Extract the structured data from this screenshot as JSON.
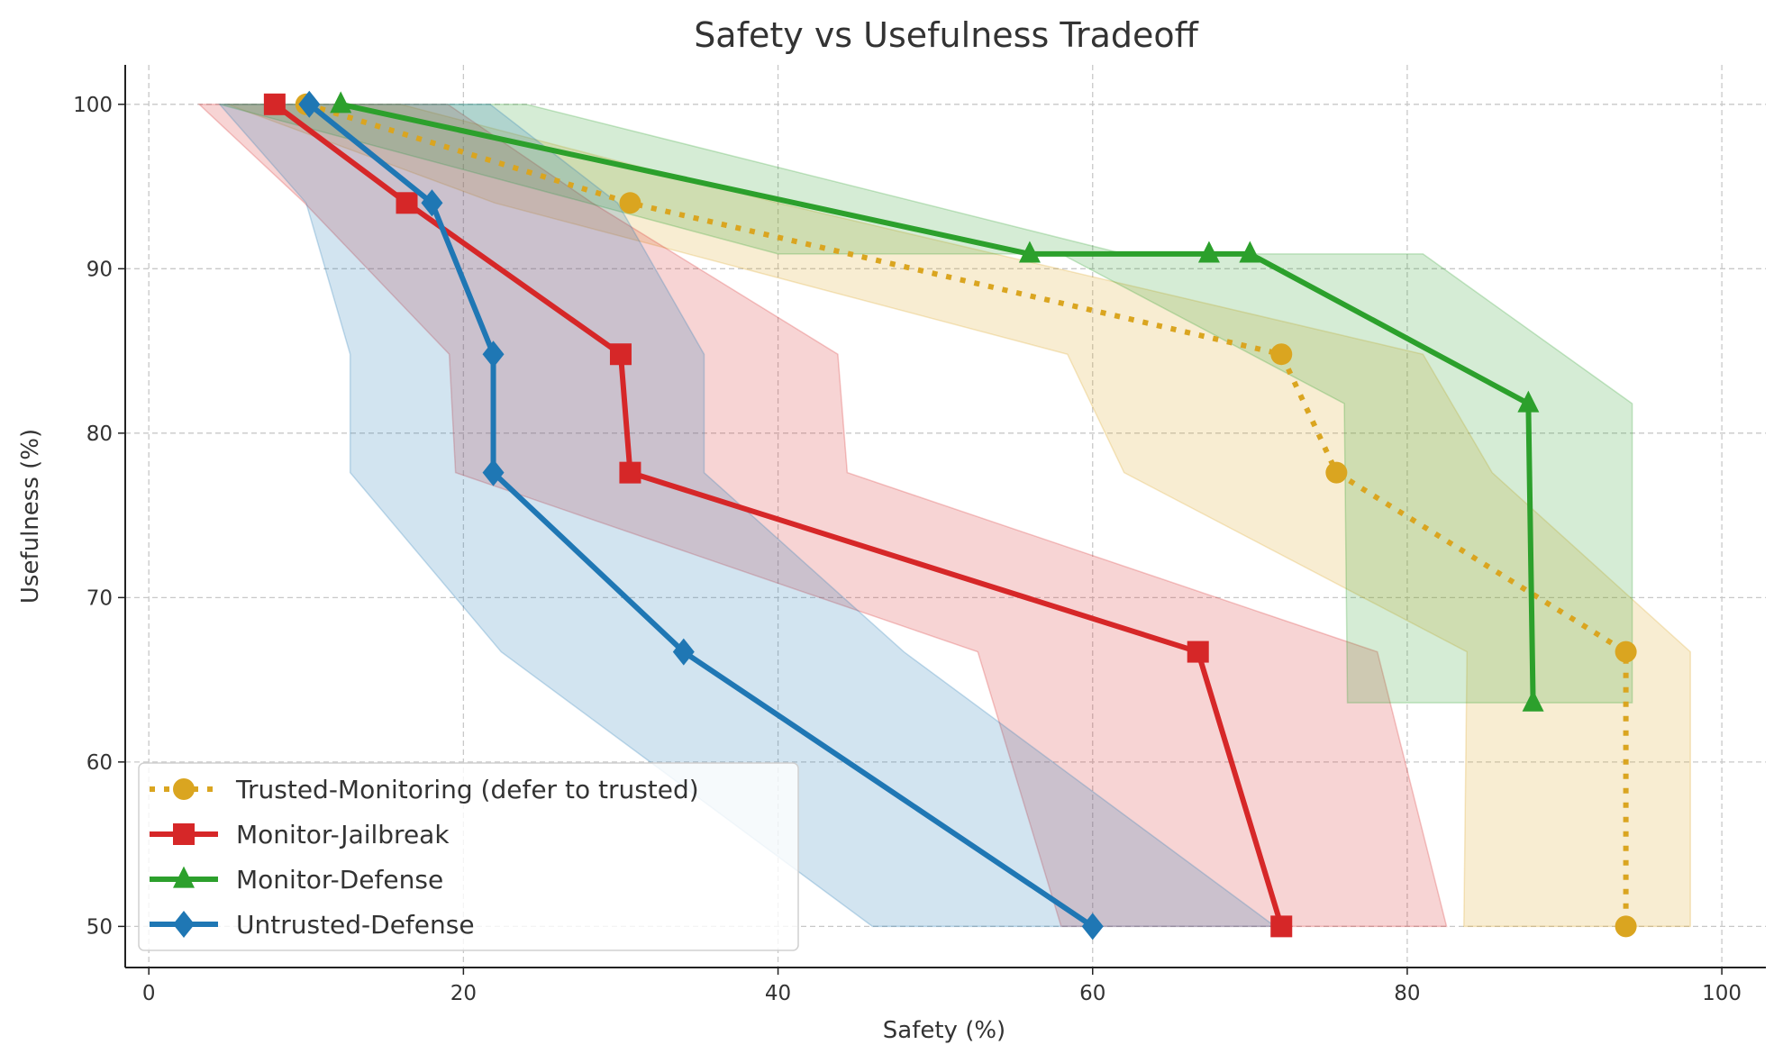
{
  "chart_data": {
    "type": "line",
    "title": "Safety vs Usefulness Tradeoff",
    "xlabel": "Safety (%)",
    "ylabel": "Usefulness (%)",
    "xlim": [
      -1.5,
      102.8
    ],
    "ylim": [
      47.5,
      102.4
    ],
    "xticks": [
      0,
      20,
      40,
      60,
      80,
      100
    ],
    "yticks": [
      50,
      60,
      70,
      80,
      90,
      100
    ],
    "xtick_labels": [
      "0",
      "20",
      "40",
      "60",
      "80",
      "100"
    ],
    "ytick_labels": [
      "50",
      "60",
      "70",
      "80",
      "90",
      "100"
    ],
    "grid": true,
    "legend_position": "bottom-left",
    "series": [
      {
        "name": "Trusted-Monitoring (defer to trusted)",
        "color": "#DAA520",
        "linestyle": "dotted",
        "marker": "circle",
        "x": [
          10.0,
          30.6,
          72.0,
          75.5,
          93.9,
          93.9
        ],
        "y": [
          100,
          94.0,
          84.8,
          77.6,
          66.7,
          50.0
        ],
        "band_lower": [
          5.0,
          22.0,
          58.4,
          62.0,
          83.8,
          83.6
        ],
        "band_upper": [
          16.0,
          40.0,
          81.0,
          85.4,
          98.0,
          98.0
        ]
      },
      {
        "name": "Monitor-Jailbreak",
        "color": "#D62728",
        "linestyle": "solid",
        "marker": "square",
        "x": [
          8.0,
          16.4,
          30.0,
          30.6,
          66.7,
          72.0
        ],
        "y": [
          100,
          94.0,
          84.8,
          77.6,
          66.7,
          50.0
        ],
        "band_lower": [
          3.2,
          9.9,
          19.1,
          19.5,
          52.7,
          58.0
        ],
        "band_upper": [
          19.0,
          28.2,
          43.8,
          44.4,
          78.1,
          82.5
        ]
      },
      {
        "name": "Monitor-Defense",
        "color": "#2CA02C",
        "linestyle": "solid",
        "marker": "triangle",
        "x": [
          12.2,
          56.0,
          67.4,
          70.0,
          87.7,
          88.0
        ],
        "y": [
          100,
          90.9,
          90.9,
          90.9,
          81.8,
          63.6
        ],
        "band_lower": [
          4.5,
          40.0,
          56.6,
          58.0,
          76.0,
          76.2
        ],
        "band_upper": [
          24.0,
          62.0,
          75.0,
          81.0,
          94.3,
          94.3
        ]
      },
      {
        "name": "Untrusted-Defense",
        "color": "#1F77B4",
        "linestyle": "solid",
        "marker": "diamond",
        "x": [
          10.2,
          18.0,
          21.9,
          21.9,
          34.0,
          60.0
        ],
        "y": [
          100,
          94.0,
          84.8,
          77.6,
          66.7,
          50.0
        ],
        "band_lower": [
          4.5,
          10.0,
          12.8,
          12.8,
          22.4,
          46.0
        ],
        "band_upper": [
          21.7,
          29.8,
          35.3,
          35.3,
          48.0,
          71.6
        ]
      }
    ]
  }
}
